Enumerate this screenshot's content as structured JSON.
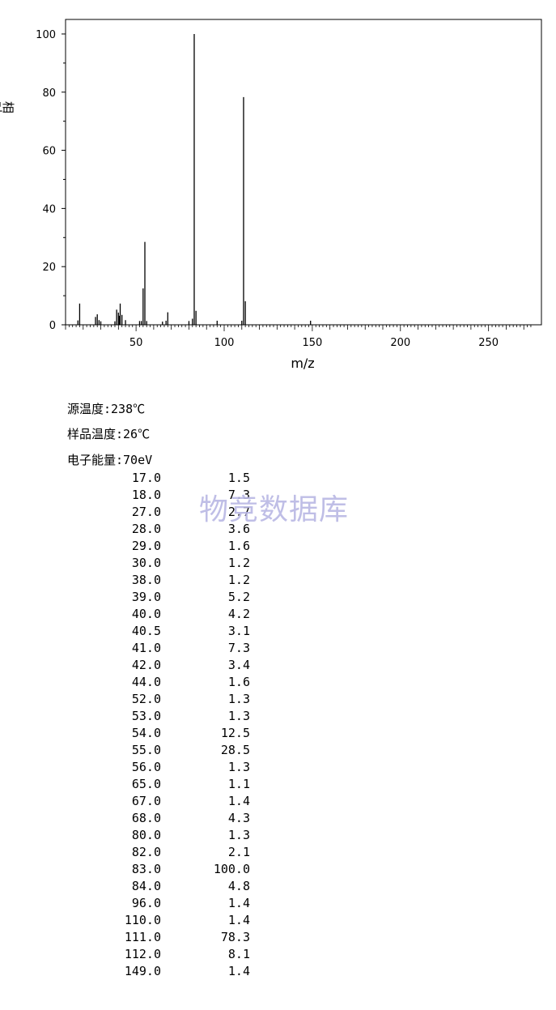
{
  "watermark": "物竞数据库",
  "conditions": {
    "source_temp": "源温度:238℃",
    "sample_temp": "样品温度:26℃",
    "electron_energy": "电子能量:70eV"
  },
  "chart_data": {
    "type": "bar",
    "title": "",
    "xlabel": "m/z",
    "ylabel": "相对强度/%",
    "xlim": [
      10,
      280
    ],
    "ylim": [
      0,
      105
    ],
    "x_ticks": [
      50,
      100,
      150,
      200,
      250
    ],
    "y_ticks": [
      0,
      20,
      40,
      60,
      80,
      100
    ],
    "grid": false,
    "bar_color": "#000000",
    "x": [
      17.0,
      18.0,
      27.0,
      28.0,
      29.0,
      30.0,
      38.0,
      39.0,
      40.0,
      40.5,
      41.0,
      42.0,
      44.0,
      52.0,
      53.0,
      54.0,
      55.0,
      56.0,
      65.0,
      67.0,
      68.0,
      80.0,
      82.0,
      83.0,
      84.0,
      96.0,
      110.0,
      111.0,
      112.0,
      149.0
    ],
    "values": [
      1.5,
      7.3,
      2.7,
      3.6,
      1.6,
      1.2,
      1.2,
      5.2,
      4.2,
      3.1,
      7.3,
      3.4,
      1.6,
      1.3,
      1.3,
      12.5,
      28.5,
      1.3,
      1.1,
      1.4,
      4.3,
      1.3,
      2.1,
      100.0,
      4.8,
      1.4,
      1.4,
      78.3,
      8.1,
      1.4
    ],
    "x_labels": [
      "17.0",
      "18.0",
      "27.0",
      "28.0",
      "29.0",
      "30.0",
      "38.0",
      "39.0",
      "40.0",
      "40.5",
      "41.0",
      "42.0",
      "44.0",
      "52.0",
      "53.0",
      "54.0",
      "55.0",
      "56.0",
      "65.0",
      "67.0",
      "68.0",
      "80.0",
      "82.0",
      "83.0",
      "84.0",
      "96.0",
      "110.0",
      "111.0",
      "112.0",
      "149.0"
    ],
    "value_labels": [
      "1.5",
      "7.3",
      "2.7",
      "3.6",
      "1.6",
      "1.2",
      "1.2",
      "5.2",
      "4.2",
      "3.1",
      "7.3",
      "3.4",
      "1.6",
      "1.3",
      "1.3",
      "12.5",
      "28.5",
      "1.3",
      "1.1",
      "1.4",
      "4.3",
      "1.3",
      "2.1",
      "100.0",
      "4.8",
      "1.4",
      "1.4",
      "78.3",
      "8.1",
      "1.4"
    ]
  }
}
